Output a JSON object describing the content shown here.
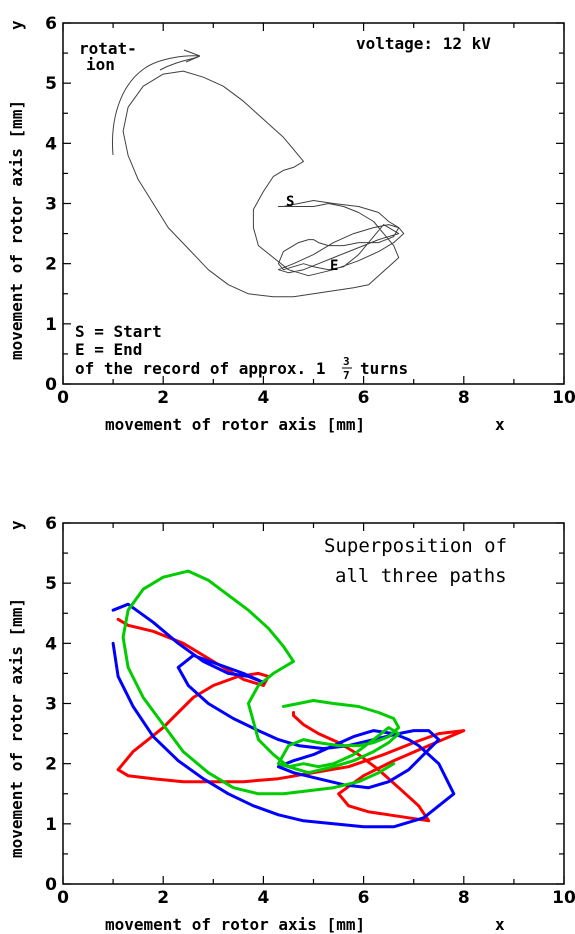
{
  "chart_data": [
    {
      "type": "line",
      "xlim": [
        0,
        10
      ],
      "ylim": [
        0,
        6
      ],
      "xticks": [
        "0",
        "2",
        "4",
        "6",
        "8",
        "10"
      ],
      "yticks": [
        "0",
        "1",
        "2",
        "3",
        "4",
        "5",
        "6"
      ],
      "xlabel": "movement of rotor axis [mm]",
      "xvar": "x",
      "ylabel": "movement of rotor axis [mm]",
      "yvar": "y",
      "annotations": {
        "voltage": "voltage: 12 kV",
        "rotation_1": "rotat-",
        "rotation_2": "ion",
        "start_marker": "S",
        "end_marker": "E",
        "legend_s": "S = Start",
        "legend_e": "E = End",
        "record_text": "of the record of approx. 1",
        "frac_num": "3",
        "frac_den": "7",
        "turns": "turns"
      },
      "series": [
        {
          "color": "#404040",
          "x": [
            4.4,
            4.7,
            5.0,
            5.4,
            5.9,
            6.3,
            6.5,
            6.7,
            6.6,
            6.3,
            5.9,
            5.6,
            5.3,
            5.1,
            5.0,
            4.9,
            4.7,
            4.4,
            4.3,
            4.4,
            4.6,
            4.8,
            5.0,
            5.3,
            5.6,
            5.9,
            6.2,
            6.4,
            6.7,
            6.3,
            6.0,
            5.7,
            5.4,
            5.1,
            4.8,
            4.5,
            4.3,
            4.6,
            5.0,
            5.4,
            5.8,
            6.2,
            6.5,
            6.7,
            6.8,
            6.6,
            6.3,
            5.9,
            5.4,
            4.9,
            4.5,
            4.2,
            3.9,
            3.8,
            3.8,
            4.0,
            4.2,
            4.4,
            4.6,
            4.8,
            4.6,
            4.4,
            4.0,
            3.6,
            3.2,
            2.8,
            2.4,
            2.0,
            1.6,
            1.3,
            1.2,
            1.3,
            1.5,
            1.8,
            2.1,
            2.5,
            2.9,
            3.3,
            3.7,
            4.2,
            4.6,
            5.0,
            5.4,
            5.8,
            6.1,
            6.3,
            6.5,
            6.7,
            6.6,
            6.4,
            6.2,
            5.9,
            5.6,
            5.3,
            5.0,
            4.7,
            4.4,
            4.3
          ],
          "y": [
            2.95,
            3.0,
            3.05,
            3.0,
            2.95,
            2.85,
            2.7,
            2.6,
            2.45,
            2.35,
            2.35,
            2.3,
            2.3,
            2.35,
            2.4,
            2.4,
            2.35,
            2.2,
            2.0,
            1.9,
            1.95,
            2.0,
            1.95,
            1.9,
            1.95,
            2.15,
            2.45,
            2.65,
            2.5,
            2.4,
            2.3,
            2.2,
            2.1,
            2.0,
            1.9,
            1.85,
            1.9,
            2.0,
            2.15,
            2.35,
            2.5,
            2.6,
            2.65,
            2.6,
            2.5,
            2.35,
            2.2,
            2.05,
            1.9,
            1.8,
            1.9,
            2.1,
            2.3,
            2.6,
            2.9,
            3.2,
            3.45,
            3.55,
            3.6,
            3.7,
            3.9,
            4.1,
            4.4,
            4.7,
            4.95,
            5.1,
            5.2,
            5.15,
            4.95,
            4.6,
            4.2,
            3.8,
            3.4,
            3.0,
            2.6,
            2.25,
            1.9,
            1.65,
            1.5,
            1.45,
            1.45,
            1.5,
            1.55,
            1.6,
            1.65,
            1.8,
            1.95,
            2.1,
            2.3,
            2.5,
            2.7,
            2.85,
            2.95,
            3.0,
            2.95,
            2.95,
            2.95,
            2.95
          ]
        }
      ]
    },
    {
      "type": "line",
      "xlim": [
        0,
        10
      ],
      "ylim": [
        0,
        6
      ],
      "xticks": [
        "0",
        "2",
        "4",
        "6",
        "8",
        "10"
      ],
      "yticks": [
        "0",
        "1",
        "2",
        "3",
        "4",
        "5",
        "6"
      ],
      "xlabel": "movement of rotor axis [mm]",
      "xvar": "x",
      "ylabel": "movement of rotor axis [mm]",
      "yvar": "y",
      "annotations": {
        "title_1": "Superposition of",
        "title_2": "all three paths"
      },
      "series": [
        {
          "color": "#ff0000",
          "x": [
            1.1,
            1.3,
            1.8,
            2.4,
            3.0,
            3.6,
            4.0,
            4.1,
            3.9,
            3.5,
            3.0,
            2.6,
            2.3,
            2.0,
            1.7,
            1.4,
            1.2,
            1.1,
            1.3,
            1.8,
            2.4,
            3.0,
            3.6,
            4.3,
            5.0,
            5.7,
            6.4,
            7.0,
            7.5,
            8.0,
            7.3,
            6.6,
            6.0,
            5.5,
            5.7,
            6.1,
            6.5,
            6.9,
            7.3,
            7.1,
            6.7,
            6.3,
            5.9,
            5.5,
            5.1,
            4.8,
            4.6,
            4.6
          ],
          "y": [
            4.4,
            4.3,
            4.2,
            4.0,
            3.7,
            3.4,
            3.3,
            3.45,
            3.5,
            3.45,
            3.3,
            3.1,
            2.85,
            2.6,
            2.4,
            2.2,
            2.0,
            1.9,
            1.8,
            1.75,
            1.7,
            1.7,
            1.7,
            1.75,
            1.85,
            1.95,
            2.15,
            2.35,
            2.5,
            2.55,
            2.3,
            2.05,
            1.8,
            1.5,
            1.3,
            1.2,
            1.15,
            1.1,
            1.05,
            1.3,
            1.6,
            1.9,
            2.15,
            2.35,
            2.5,
            2.65,
            2.8,
            2.85
          ]
        },
        {
          "color": "#0000ff",
          "x": [
            1.0,
            1.3,
            1.8,
            2.3,
            2.8,
            3.3,
            3.7,
            4.0,
            3.6,
            3.1,
            2.6,
            2.3,
            2.5,
            2.9,
            3.4,
            3.9,
            4.3,
            4.7,
            5.2,
            5.7,
            6.2,
            6.7,
            7.0,
            7.3,
            7.5,
            7.2,
            6.9,
            6.5,
            6.1,
            5.6,
            5.1,
            4.6,
            4.3,
            4.6,
            5.0,
            5.4,
            5.8,
            6.2,
            6.6,
            6.9,
            7.1,
            7.5,
            7.8,
            7.2,
            6.6,
            6.0,
            5.4,
            4.8,
            4.3,
            3.8,
            3.3,
            2.8,
            2.3,
            1.8,
            1.4,
            1.1,
            1.0
          ],
          "y": [
            4.55,
            4.65,
            4.35,
            4.0,
            3.7,
            3.5,
            3.45,
            3.35,
            3.5,
            3.65,
            3.8,
            3.6,
            3.3,
            3.0,
            2.75,
            2.55,
            2.4,
            2.3,
            2.25,
            2.3,
            2.4,
            2.5,
            2.55,
            2.55,
            2.4,
            2.15,
            1.9,
            1.7,
            1.6,
            1.65,
            1.75,
            1.85,
            1.95,
            2.05,
            2.15,
            2.3,
            2.45,
            2.55,
            2.5,
            2.4,
            2.3,
            2.0,
            1.5,
            1.1,
            0.95,
            0.95,
            1.0,
            1.05,
            1.15,
            1.3,
            1.5,
            1.75,
            2.05,
            2.45,
            2.95,
            3.45,
            4.0
          ]
        },
        {
          "color": "#00cc00",
          "x": [
            4.4,
            4.7,
            5.0,
            5.4,
            5.9,
            6.3,
            6.6,
            6.7,
            6.5,
            6.2,
            5.9,
            5.5,
            5.1,
            4.8,
            4.5,
            4.3,
            4.5,
            4.8,
            5.1,
            5.4,
            5.8,
            6.2,
            6.5,
            6.7,
            6.5,
            6.2,
            5.8,
            5.4,
            4.9,
            4.5,
            4.2,
            3.9,
            3.8,
            3.7,
            3.9,
            4.2,
            4.4,
            4.6,
            4.4,
            4.1,
            3.7,
            3.3,
            2.9,
            2.5,
            2.0,
            1.6,
            1.3,
            1.2,
            1.3,
            1.6,
            2.0,
            2.4,
            2.9,
            3.4,
            3.9,
            4.4,
            4.9,
            5.4,
            5.9,
            6.3,
            6.6
          ],
          "y": [
            2.95,
            3.0,
            3.05,
            3.0,
            2.95,
            2.85,
            2.75,
            2.6,
            2.45,
            2.35,
            2.3,
            2.3,
            2.35,
            2.4,
            2.3,
            2.0,
            1.95,
            2.0,
            1.95,
            2.0,
            2.15,
            2.4,
            2.6,
            2.5,
            2.35,
            2.2,
            2.05,
            1.95,
            1.85,
            1.95,
            2.15,
            2.4,
            2.7,
            3.0,
            3.3,
            3.5,
            3.6,
            3.7,
            3.95,
            4.25,
            4.55,
            4.8,
            5.05,
            5.2,
            5.1,
            4.9,
            4.55,
            4.1,
            3.6,
            3.1,
            2.65,
            2.2,
            1.85,
            1.6,
            1.5,
            1.5,
            1.55,
            1.6,
            1.7,
            1.85,
            2.0
          ]
        }
      ]
    }
  ]
}
